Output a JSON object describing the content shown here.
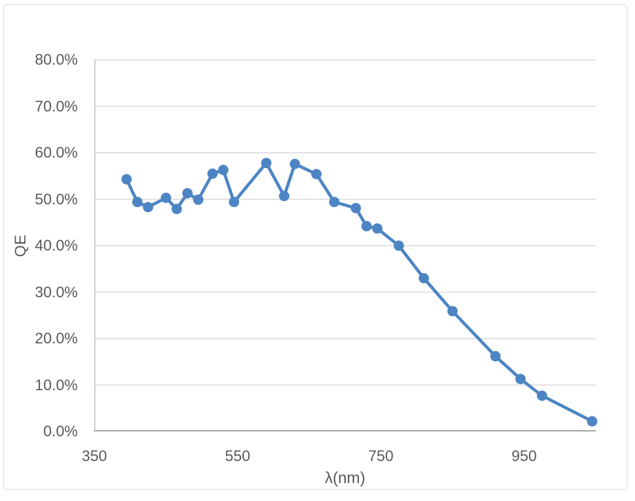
{
  "chart_data": {
    "type": "line",
    "title": "",
    "xlabel": "λ(nm)",
    "ylabel": "QE",
    "x": [
      395,
      410,
      425,
      450,
      465,
      480,
      495,
      515,
      530,
      545,
      590,
      615,
      630,
      660,
      685,
      715,
      730,
      745,
      775,
      810,
      850,
      910,
      945,
      975,
      1045
    ],
    "series": [
      {
        "name": "QE",
        "values_percent": [
          54.3,
          49.4,
          48.3,
          50.3,
          47.9,
          51.3,
          49.9,
          55.5,
          56.3,
          49.4,
          57.8,
          50.7,
          57.6,
          55.4,
          49.4,
          48.1,
          44.2,
          43.7,
          40.0,
          33.0,
          25.9,
          16.2,
          11.3,
          7.7,
          2.2
        ]
      }
    ],
    "xlim": [
      350,
      1050
    ],
    "ylim_percent": [
      0,
      80
    ],
    "x_tick_values": [
      350,
      550,
      750,
      950
    ],
    "x_tick_labels": [
      "350",
      "550",
      "750",
      "950"
    ],
    "y_tick_values": [
      0,
      10,
      20,
      30,
      40,
      50,
      60,
      70,
      80
    ],
    "y_tick_labels": [
      "0.0%",
      "10.0%",
      "20.0%",
      "30.0%",
      "40.0%",
      "50.0%",
      "60.0%",
      "70.0%",
      "80.0%"
    ],
    "grid": "horizontal-major",
    "legend": "none",
    "marker": "circle"
  },
  "style": {
    "series_color": "#4d85c4",
    "marker_color": "#4d85c4",
    "gridline_color": "#d9d9d9",
    "y_axis_line_color": "#bfbfbf",
    "x_axis_line_color": "#a6a6a6",
    "tick_label_color": "#595959",
    "axis_title_color": "#595959",
    "chart_border_color": "#d9d9d9",
    "background": "#ffffff"
  }
}
